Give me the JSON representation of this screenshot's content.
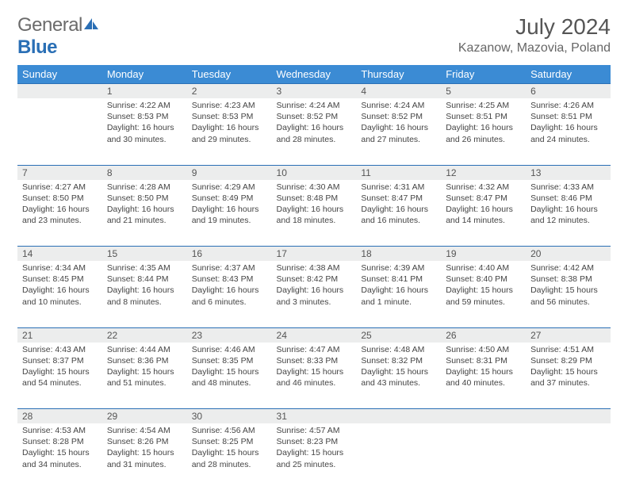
{
  "brand": {
    "part1": "General",
    "part2": "Blue"
  },
  "title": "July 2024",
  "location": "Kazanow, Mazovia, Poland",
  "colors": {
    "header_bg": "#3b8bd4",
    "header_text": "#ffffff",
    "daynum_bg": "#eceded",
    "rule": "#2a6fb5",
    "logo_gray": "#6b6b6b",
    "logo_blue": "#2a6fb5"
  },
  "day_labels": [
    "Sunday",
    "Monday",
    "Tuesday",
    "Wednesday",
    "Thursday",
    "Friday",
    "Saturday"
  ],
  "weeks": [
    [
      null,
      {
        "n": "1",
        "sr": "Sunrise: 4:22 AM",
        "ss": "Sunset: 8:53 PM",
        "dl1": "Daylight: 16 hours",
        "dl2": "and 30 minutes."
      },
      {
        "n": "2",
        "sr": "Sunrise: 4:23 AM",
        "ss": "Sunset: 8:53 PM",
        "dl1": "Daylight: 16 hours",
        "dl2": "and 29 minutes."
      },
      {
        "n": "3",
        "sr": "Sunrise: 4:24 AM",
        "ss": "Sunset: 8:52 PM",
        "dl1": "Daylight: 16 hours",
        "dl2": "and 28 minutes."
      },
      {
        "n": "4",
        "sr": "Sunrise: 4:24 AM",
        "ss": "Sunset: 8:52 PM",
        "dl1": "Daylight: 16 hours",
        "dl2": "and 27 minutes."
      },
      {
        "n": "5",
        "sr": "Sunrise: 4:25 AM",
        "ss": "Sunset: 8:51 PM",
        "dl1": "Daylight: 16 hours",
        "dl2": "and 26 minutes."
      },
      {
        "n": "6",
        "sr": "Sunrise: 4:26 AM",
        "ss": "Sunset: 8:51 PM",
        "dl1": "Daylight: 16 hours",
        "dl2": "and 24 minutes."
      }
    ],
    [
      {
        "n": "7",
        "sr": "Sunrise: 4:27 AM",
        "ss": "Sunset: 8:50 PM",
        "dl1": "Daylight: 16 hours",
        "dl2": "and 23 minutes."
      },
      {
        "n": "8",
        "sr": "Sunrise: 4:28 AM",
        "ss": "Sunset: 8:50 PM",
        "dl1": "Daylight: 16 hours",
        "dl2": "and 21 minutes."
      },
      {
        "n": "9",
        "sr": "Sunrise: 4:29 AM",
        "ss": "Sunset: 8:49 PM",
        "dl1": "Daylight: 16 hours",
        "dl2": "and 19 minutes."
      },
      {
        "n": "10",
        "sr": "Sunrise: 4:30 AM",
        "ss": "Sunset: 8:48 PM",
        "dl1": "Daylight: 16 hours",
        "dl2": "and 18 minutes."
      },
      {
        "n": "11",
        "sr": "Sunrise: 4:31 AM",
        "ss": "Sunset: 8:47 PM",
        "dl1": "Daylight: 16 hours",
        "dl2": "and 16 minutes."
      },
      {
        "n": "12",
        "sr": "Sunrise: 4:32 AM",
        "ss": "Sunset: 8:47 PM",
        "dl1": "Daylight: 16 hours",
        "dl2": "and 14 minutes."
      },
      {
        "n": "13",
        "sr": "Sunrise: 4:33 AM",
        "ss": "Sunset: 8:46 PM",
        "dl1": "Daylight: 16 hours",
        "dl2": "and 12 minutes."
      }
    ],
    [
      {
        "n": "14",
        "sr": "Sunrise: 4:34 AM",
        "ss": "Sunset: 8:45 PM",
        "dl1": "Daylight: 16 hours",
        "dl2": "and 10 minutes."
      },
      {
        "n": "15",
        "sr": "Sunrise: 4:35 AM",
        "ss": "Sunset: 8:44 PM",
        "dl1": "Daylight: 16 hours",
        "dl2": "and 8 minutes."
      },
      {
        "n": "16",
        "sr": "Sunrise: 4:37 AM",
        "ss": "Sunset: 8:43 PM",
        "dl1": "Daylight: 16 hours",
        "dl2": "and 6 minutes."
      },
      {
        "n": "17",
        "sr": "Sunrise: 4:38 AM",
        "ss": "Sunset: 8:42 PM",
        "dl1": "Daylight: 16 hours",
        "dl2": "and 3 minutes."
      },
      {
        "n": "18",
        "sr": "Sunrise: 4:39 AM",
        "ss": "Sunset: 8:41 PM",
        "dl1": "Daylight: 16 hours",
        "dl2": "and 1 minute."
      },
      {
        "n": "19",
        "sr": "Sunrise: 4:40 AM",
        "ss": "Sunset: 8:40 PM",
        "dl1": "Daylight: 15 hours",
        "dl2": "and 59 minutes."
      },
      {
        "n": "20",
        "sr": "Sunrise: 4:42 AM",
        "ss": "Sunset: 8:38 PM",
        "dl1": "Daylight: 15 hours",
        "dl2": "and 56 minutes."
      }
    ],
    [
      {
        "n": "21",
        "sr": "Sunrise: 4:43 AM",
        "ss": "Sunset: 8:37 PM",
        "dl1": "Daylight: 15 hours",
        "dl2": "and 54 minutes."
      },
      {
        "n": "22",
        "sr": "Sunrise: 4:44 AM",
        "ss": "Sunset: 8:36 PM",
        "dl1": "Daylight: 15 hours",
        "dl2": "and 51 minutes."
      },
      {
        "n": "23",
        "sr": "Sunrise: 4:46 AM",
        "ss": "Sunset: 8:35 PM",
        "dl1": "Daylight: 15 hours",
        "dl2": "and 48 minutes."
      },
      {
        "n": "24",
        "sr": "Sunrise: 4:47 AM",
        "ss": "Sunset: 8:33 PM",
        "dl1": "Daylight: 15 hours",
        "dl2": "and 46 minutes."
      },
      {
        "n": "25",
        "sr": "Sunrise: 4:48 AM",
        "ss": "Sunset: 8:32 PM",
        "dl1": "Daylight: 15 hours",
        "dl2": "and 43 minutes."
      },
      {
        "n": "26",
        "sr": "Sunrise: 4:50 AM",
        "ss": "Sunset: 8:31 PM",
        "dl1": "Daylight: 15 hours",
        "dl2": "and 40 minutes."
      },
      {
        "n": "27",
        "sr": "Sunrise: 4:51 AM",
        "ss": "Sunset: 8:29 PM",
        "dl1": "Daylight: 15 hours",
        "dl2": "and 37 minutes."
      }
    ],
    [
      {
        "n": "28",
        "sr": "Sunrise: 4:53 AM",
        "ss": "Sunset: 8:28 PM",
        "dl1": "Daylight: 15 hours",
        "dl2": "and 34 minutes."
      },
      {
        "n": "29",
        "sr": "Sunrise: 4:54 AM",
        "ss": "Sunset: 8:26 PM",
        "dl1": "Daylight: 15 hours",
        "dl2": "and 31 minutes."
      },
      {
        "n": "30",
        "sr": "Sunrise: 4:56 AM",
        "ss": "Sunset: 8:25 PM",
        "dl1": "Daylight: 15 hours",
        "dl2": "and 28 minutes."
      },
      {
        "n": "31",
        "sr": "Sunrise: 4:57 AM",
        "ss": "Sunset: 8:23 PM",
        "dl1": "Daylight: 15 hours",
        "dl2": "and 25 minutes."
      },
      null,
      null,
      null
    ]
  ]
}
